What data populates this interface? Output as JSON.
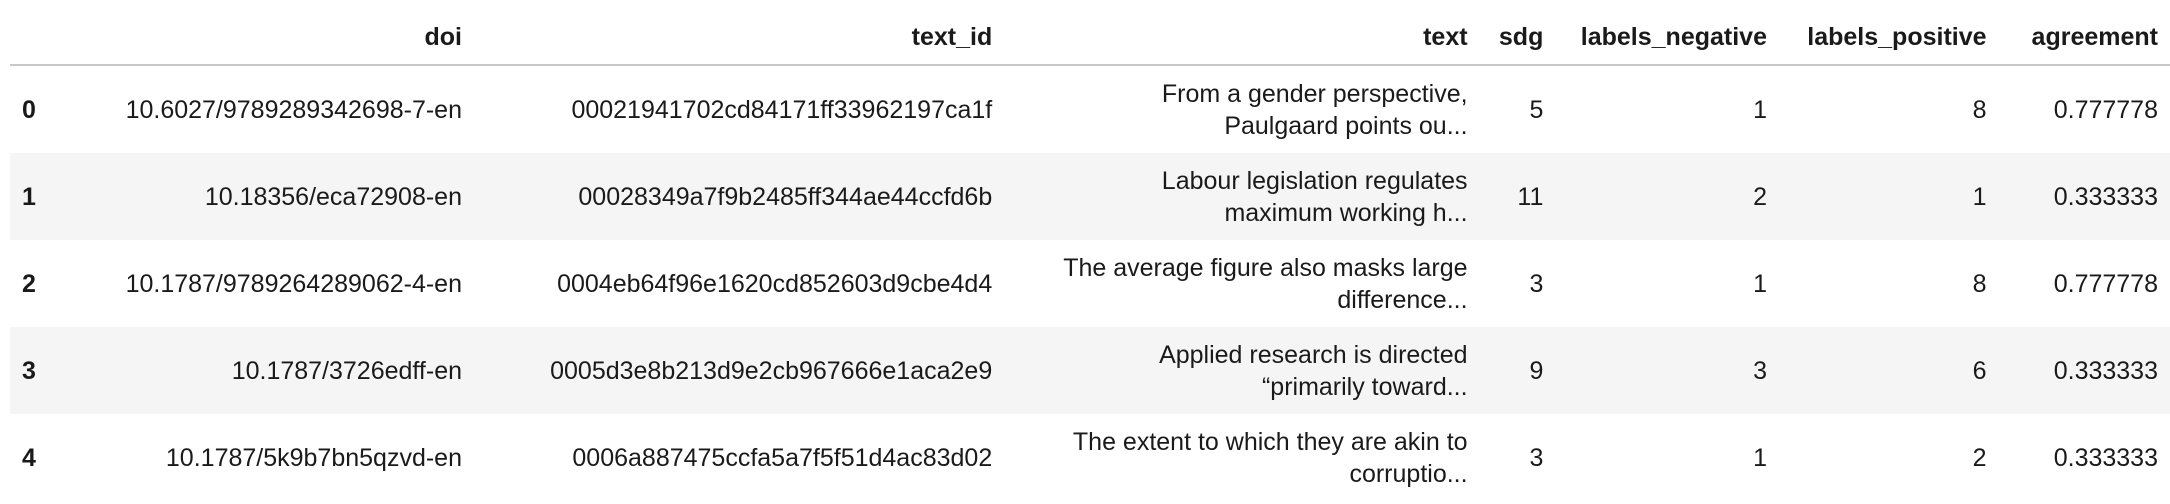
{
  "table": {
    "columns": {
      "index": "",
      "doi": "doi",
      "text_id": "text_id",
      "text": "text",
      "sdg": "sdg",
      "labels_negative": "labels_negative",
      "labels_positive": "labels_positive",
      "agreement": "agreement"
    },
    "rows": [
      {
        "index": "0",
        "doi": "10.6027/9789289342698-7-en",
        "text_id": "00021941702cd84171ff33962197ca1f",
        "text_line1": "From a gender perspective,",
        "text_line2": "Paulgaard points ou...",
        "sdg": "5",
        "labels_negative": "1",
        "labels_positive": "8",
        "agreement": "0.777778"
      },
      {
        "index": "1",
        "doi": "10.18356/eca72908-en",
        "text_id": "00028349a7f9b2485ff344ae44ccfd6b",
        "text_line1": "Labour legislation regulates",
        "text_line2": "maximum working h...",
        "sdg": "11",
        "labels_negative": "2",
        "labels_positive": "1",
        "agreement": "0.333333"
      },
      {
        "index": "2",
        "doi": "10.1787/9789264289062-4-en",
        "text_id": "0004eb64f96e1620cd852603d9cbe4d4",
        "text_line1": "The average figure also masks large",
        "text_line2": "difference...",
        "sdg": "3",
        "labels_negative": "1",
        "labels_positive": "8",
        "agreement": "0.777778"
      },
      {
        "index": "3",
        "doi": "10.1787/3726edff-en",
        "text_id": "0005d3e8b213d9e2cb967666e1aca2e9",
        "text_line1": "Applied research is directed",
        "text_line2": "“primarily toward...",
        "sdg": "9",
        "labels_negative": "3",
        "labels_positive": "6",
        "agreement": "0.333333"
      },
      {
        "index": "4",
        "doi": "10.1787/5k9b7bn5qzvd-en",
        "text_id": "0006a887475ccfa5a7f5f51d4ac83d02",
        "text_line1": "The extent to which they are akin to",
        "text_line2": "corruptio...",
        "sdg": "3",
        "labels_negative": "1",
        "labels_positive": "2",
        "agreement": "0.333333"
      }
    ]
  }
}
